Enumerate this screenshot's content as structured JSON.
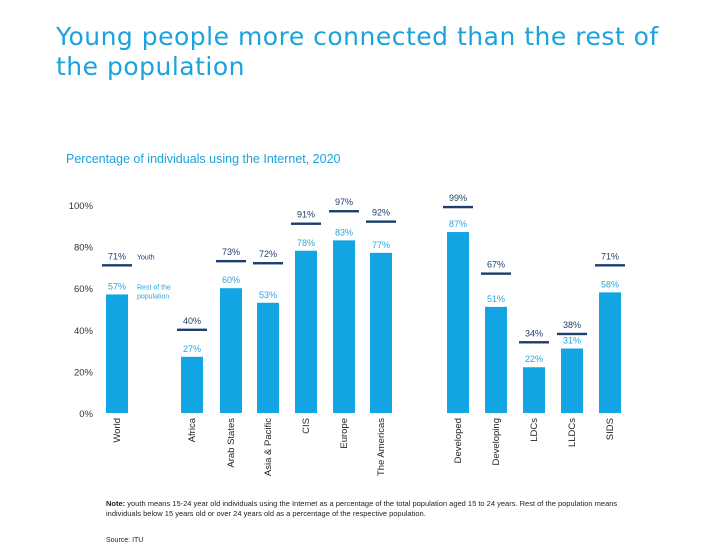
{
  "title": "Young people more connected than the rest of the population",
  "chart_data": {
    "type": "bar",
    "title": "Percentage of individuals using the Internet, 2020",
    "xlabel": "",
    "ylabel": "",
    "ylim": [
      0,
      100
    ],
    "yticks": [
      "0%",
      "20%",
      "40%",
      "60%",
      "80%",
      "100%"
    ],
    "categories": [
      "World",
      "Africa",
      "Arab States",
      "Asia & Pacific",
      "CIS",
      "Europe",
      "The Americas",
      "Developed",
      "Developing",
      "LDCs",
      "LLDCs",
      "SIDS"
    ],
    "series": [
      {
        "name": "Rest of the population",
        "values": [
          57,
          27,
          60,
          53,
          78,
          83,
          77,
          87,
          51,
          22,
          31,
          58
        ],
        "color": "#13a5e3",
        "style": "bar"
      },
      {
        "name": "Youth",
        "values": [
          71,
          40,
          73,
          72,
          91,
          97,
          92,
          99,
          67,
          34,
          38,
          71
        ],
        "color": "#1c3f6e",
        "style": "marker-line"
      }
    ],
    "legend_labels": [
      "Youth",
      "Rest of the population"
    ],
    "grid": false
  },
  "note_label": "Note:",
  "note_text": "youth means 15-24 year old individuals using the Internet as a percentage of the total population aged 15 to 24 years. Rest of the population means individuals below 15 years old or over 24 years old as a percentage of the respective population.",
  "source": "Source: ITU"
}
